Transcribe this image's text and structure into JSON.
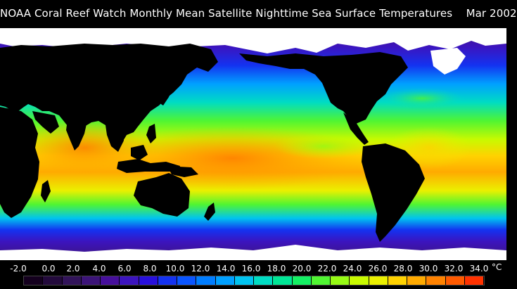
{
  "title": "NOAA Coral Reef Watch Monthly Mean Satellite Nighttime Sea Surface Temperatures    Mar 2002",
  "colorbar": {
    "tick_labels": [
      "-2.0",
      "0.0",
      "2.0",
      "4.0",
      "6.0",
      "8.0",
      "10.0",
      "12.0",
      "14.0",
      "16.0",
      "18.0",
      "20.0",
      "22.0",
      "24.0",
      "26.0",
      "28.0",
      "30.0",
      "32.0",
      "34.0"
    ],
    "unit": "°C",
    "colors": [
      "#14001e",
      "#230a3c",
      "#32145a",
      "#3c1478",
      "#460f9b",
      "#3c14be",
      "#280fdc",
      "#1432f0",
      "#0a55ff",
      "#007dff",
      "#00a0ff",
      "#00c3f0",
      "#00dcc3",
      "#00e696",
      "#14f064",
      "#50f532",
      "#96fa14",
      "#c8fa00",
      "#ebf000",
      "#ffd200",
      "#ffaa00",
      "#ff8200",
      "#ff5a00",
      "#ff3200"
    ]
  },
  "map": {
    "land_color": "#000000",
    "ice_color": "#ffffff",
    "palette": {
      "polar": "#3c1478",
      "sub_polar": "#1432f0",
      "cool": "#00c3f0",
      "temperate": "#50f532",
      "warm": "#ebf000",
      "tropical": "#ffaa00",
      "hot": "#ff8200"
    }
  }
}
